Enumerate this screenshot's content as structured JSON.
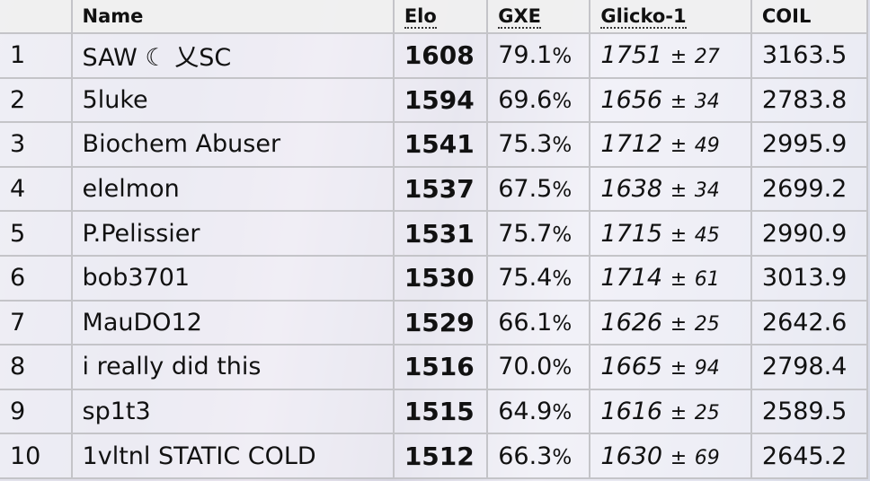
{
  "headers": {
    "rank": "",
    "name": "Name",
    "elo": "Elo",
    "gxe": "GXE",
    "glicko": "Glicko-1",
    "coil": "COIL"
  },
  "rows": [
    {
      "rank": "1",
      "name": "SAW ☾ 乂SC",
      "elo": "1608",
      "gxe": "79.1",
      "glicko": "1751",
      "dev": "27",
      "coil": "3163.5"
    },
    {
      "rank": "2",
      "name": "5luke",
      "elo": "1594",
      "gxe": "69.6",
      "glicko": "1656",
      "dev": "34",
      "coil": "2783.8"
    },
    {
      "rank": "3",
      "name": "Biochem Abuser",
      "elo": "1541",
      "gxe": "75.3",
      "glicko": "1712",
      "dev": "49",
      "coil": "2995.9"
    },
    {
      "rank": "4",
      "name": "elelmon",
      "elo": "1537",
      "gxe": "67.5",
      "glicko": "1638",
      "dev": "34",
      "coil": "2699.2"
    },
    {
      "rank": "5",
      "name": "P.Pelissier",
      "elo": "1531",
      "gxe": "75.7",
      "glicko": "1715",
      "dev": "45",
      "coil": "2990.9"
    },
    {
      "rank": "6",
      "name": "bob3701",
      "elo": "1530",
      "gxe": "75.4",
      "glicko": "1714",
      "dev": "61",
      "coil": "3013.9"
    },
    {
      "rank": "7",
      "name": "MauDO12",
      "elo": "1529",
      "gxe": "66.1",
      "glicko": "1626",
      "dev": "25",
      "coil": "2642.6"
    },
    {
      "rank": "8",
      "name": "i really did this",
      "elo": "1516",
      "gxe": "70.0",
      "glicko": "1665",
      "dev": "94",
      "coil": "2798.4"
    },
    {
      "rank": "9",
      "name": "sp1t3",
      "elo": "1515",
      "gxe": "64.9",
      "glicko": "1616",
      "dev": "25",
      "coil": "2589.5"
    },
    {
      "rank": "10",
      "name": "1vltnl STATIC COLD",
      "elo": "1512",
      "gxe": "66.3",
      "glicko": "1630",
      "dev": "69",
      "coil": "2645.2"
    }
  ],
  "symbols": {
    "percent": "%",
    "plusminus": "±"
  }
}
